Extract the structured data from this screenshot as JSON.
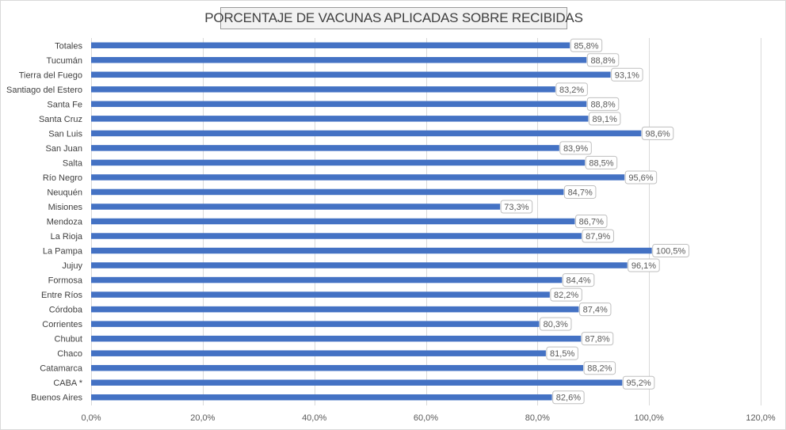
{
  "chart_data": {
    "type": "bar",
    "orientation": "horizontal",
    "title": "PORCENTAJE DE VACUNAS APLICADAS SOBRE RECIBIDAS",
    "categories": [
      "Totales",
      "Tucumán",
      "Tierra del Fuego",
      "Santiago del Estero",
      "Santa Fe",
      "Santa Cruz",
      "San Luis",
      "San Juan",
      "Salta",
      "Río Negro",
      "Neuquén",
      "Misiones",
      "Mendoza",
      "La Rioja",
      "La Pampa",
      "Jujuy",
      "Formosa",
      "Entre Ríos",
      "Córdoba",
      "Corrientes",
      "Chubut",
      "Chaco",
      "Catamarca",
      "CABA *",
      "Buenos Aires"
    ],
    "values": [
      85.8,
      88.8,
      93.1,
      83.2,
      88.8,
      89.1,
      98.6,
      83.9,
      88.5,
      95.6,
      84.7,
      73.3,
      86.7,
      87.9,
      100.5,
      96.1,
      84.4,
      82.2,
      87.4,
      80.3,
      87.8,
      81.5,
      88.2,
      95.2,
      82.6
    ],
    "data_labels": [
      "85,8%",
      "88,8%",
      "93,1%",
      "83,2%",
      "88,8%",
      "89,1%",
      "98,6%",
      "83,9%",
      "88,5%",
      "95,6%",
      "84,7%",
      "73,3%",
      "86,7%",
      "87,9%",
      "100,5%",
      "96,1%",
      "84,4%",
      "82,2%",
      "87,4%",
      "80,3%",
      "87,8%",
      "81,5%",
      "88,2%",
      "95,2%",
      "82,6%"
    ],
    "xlim": [
      0,
      120
    ],
    "x_ticks": [
      0,
      20,
      40,
      60,
      80,
      100,
      120
    ],
    "x_tick_labels": [
      "0,0%",
      "20,0%",
      "40,0%",
      "60,0%",
      "80,0%",
      "100,0%",
      "120,0%"
    ],
    "xlabel": "",
    "ylabel": "",
    "grid": "vertical",
    "legend": "none",
    "bar_color": "#4472c4",
    "grid_color": "#d9d9d9",
    "text_color": "#595959"
  }
}
